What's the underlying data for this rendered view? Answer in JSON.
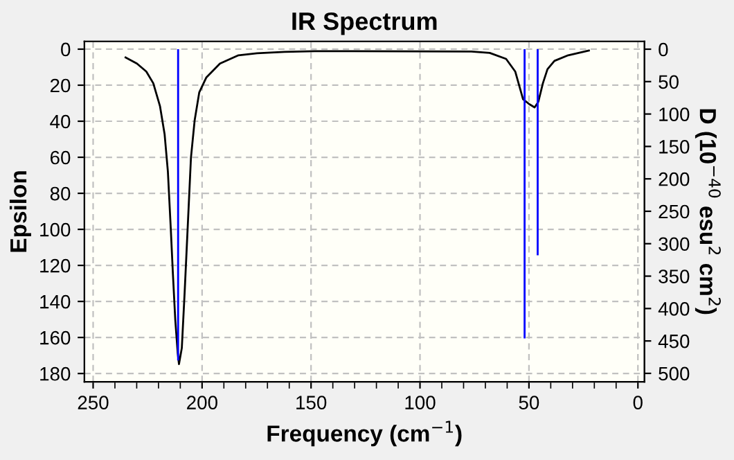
{
  "chart_data": {
    "type": "line",
    "title": "IR Spectrum",
    "xlabel": "Frequency (cm$^{−1}$)",
    "ylabel": "Epsilon",
    "y2label": "D (10$^{−40}$ esu$^{2}$ cm$^{2}$)",
    "xlim": [
      254,
      -3
    ],
    "xticks": [
      250,
      {
        "value": 240,
        "label": null
      },
      {
        "value": 230,
        "label": null
      },
      {
        "value": 220,
        "label": null
      },
      {
        "value": 210,
        "label": null
      },
      200,
      {
        "value": 190,
        "label": null
      },
      {
        "value": 180,
        "label": null
      },
      {
        "value": 170,
        "label": null
      },
      {
        "value": 160,
        "label": null
      },
      150,
      {
        "value": 140,
        "label": null
      },
      {
        "value": 130,
        "label": null
      },
      {
        "value": 120,
        "label": null
      },
      {
        "value": 110,
        "label": null
      },
      100,
      {
        "value": 90,
        "label": null
      },
      {
        "value": 80,
        "label": null
      },
      {
        "value": 70,
        "label": null
      },
      {
        "value": 60,
        "label": null
      },
      50,
      {
        "value": 40,
        "label": null
      },
      {
        "value": 30,
        "label": null
      },
      {
        "value": 20,
        "label": null
      },
      {
        "value": 10,
        "label": null
      },
      0
    ],
    "ylim": [
      184.6,
      -4.3
    ],
    "yticks": [
      0,
      20,
      40,
      60,
      80,
      100,
      120,
      140,
      160,
      180
    ],
    "y2lim": [
      513,
      -12
    ],
    "y2ticks": [
      0,
      50,
      100,
      150,
      200,
      250,
      300,
      350,
      400,
      450,
      500
    ],
    "grid": true,
    "legend": false,
    "line_style": "solid",
    "marker": "none",
    "series": [
      {
        "color": "#000000",
        "x": [
          235.1,
          229.9,
          225.6,
          222.4,
          219.3,
          217.2,
          215.7,
          214.4,
          213.4,
          212.3,
          211.2,
          210.6,
          209.3,
          208.0,
          206.6,
          205.1,
          203.4,
          201.3,
          198.1,
          191.8,
          183.3,
          174.8,
          162.1,
          148.3,
          76.4,
          68.0,
          60.5,
          56.3,
          54.2,
          52.7,
          49.9,
          47.4,
          45.7,
          43.6,
          41.5,
          38.3,
          32.0,
          22.5
        ],
        "values": [
          4.6,
          8.0,
          12.4,
          18.9,
          31.7,
          47.2,
          67.8,
          98.8,
          124.5,
          150.3,
          168.4,
          174.8,
          165.8,
          134.9,
          98.8,
          60.1,
          39.4,
          24.0,
          15.8,
          8.0,
          3.4,
          2.3,
          1.5,
          1.1,
          1.3,
          2.1,
          5.4,
          12.4,
          21.4,
          27.8,
          30.5,
          32.3,
          29.2,
          18.9,
          11.1,
          6.5,
          3.4,
          0.8
        ]
      },
      {
        "type": "bar",
        "axis": "y2",
        "color": "#0000ff",
        "x": [
          211,
          52,
          46
        ],
        "values": [
          480,
          446,
          318
        ]
      }
    ]
  }
}
